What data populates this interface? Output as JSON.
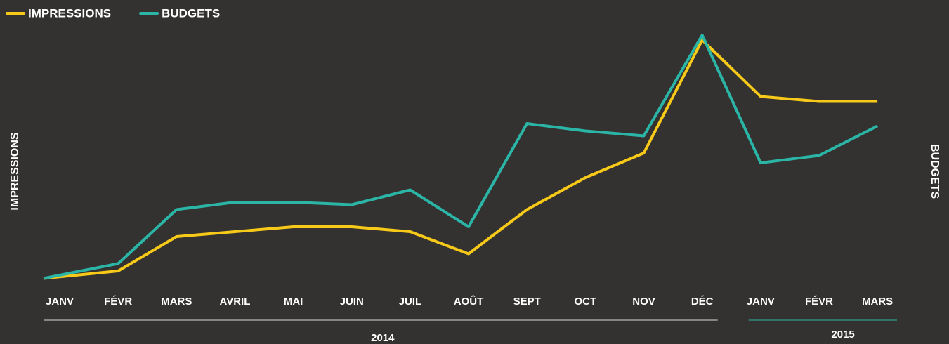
{
  "chart_data": {
    "type": "line",
    "groups": [
      {
        "name": "2014",
        "color": "#d9d9d9",
        "categories": [
          "JANV",
          "FÉVR",
          "MARS",
          "AVRIL",
          "MAI",
          "JUIN",
          "JUIL",
          "AOÛT",
          "SEPT",
          "OCT",
          "NOV",
          "DÉC"
        ]
      },
      {
        "name": "2015",
        "color": "#2bb5a6",
        "categories": [
          "JANV",
          "FÉVR",
          "MARS"
        ]
      }
    ],
    "series": [
      {
        "name": "IMPRESSIONS",
        "color": "#f7c918",
        "values": [
          1,
          4,
          18,
          20,
          22,
          22,
          20,
          11,
          29,
          42,
          52,
          98,
          75,
          73,
          73
        ]
      },
      {
        "name": "BUDGETS",
        "color": "#2bb5a6",
        "axis": "y2",
        "values": [
          1,
          7,
          29,
          32,
          32,
          31,
          37,
          22,
          64,
          61,
          59,
          100,
          48,
          51,
          63
        ]
      }
    ],
    "ylabel": "IMPRESSIONS",
    "y2label": "BUDGETS",
    "ylim": [
      0,
      100
    ],
    "y2lim": [
      0,
      100
    ],
    "legend": "top-left"
  }
}
